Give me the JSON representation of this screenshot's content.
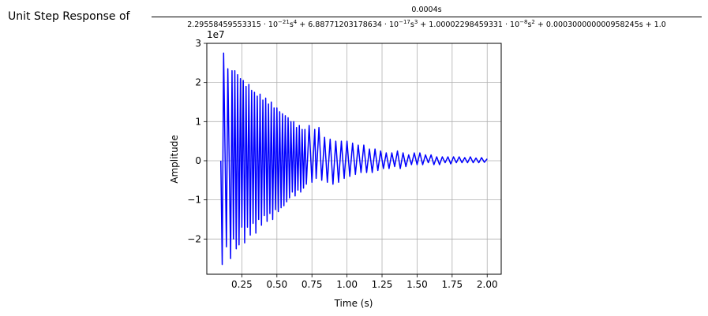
{
  "chart_data": {
    "type": "line",
    "title": {
      "prefix": "Unit Step Response of",
      "numerator": "0.0004s",
      "denominator": {
        "c4": "2.29558459553315 · 10",
        "e4": "−21",
        "s4": "s",
        "p4": "4",
        "c3": " + 6.88771203178634 · 10",
        "e3": "−17",
        "s3": "s",
        "p3": "3",
        "c2": " + 1.00002298459331 · 10",
        "e2": "−8",
        "s2": "s",
        "p2": "2",
        "c1": " + 0.000300000000958245s + 1.0"
      }
    },
    "xlabel": "Time (s)",
    "ylabel": "Amplitude",
    "y_offset_text": "1e7",
    "xlim": [
      0.0,
      2.1
    ],
    "ylim": [
      -2.9,
      3.0
    ],
    "xticks": [
      "0.25",
      "0.50",
      "0.75",
      "1.00",
      "1.25",
      "1.50",
      "1.75",
      "2.00"
    ],
    "xtick_values": [
      0.25,
      0.5,
      0.75,
      1.0,
      1.25,
      1.5,
      1.75,
      2.0
    ],
    "yticks": [
      "−2",
      "−1",
      "0",
      "1",
      "2",
      "3"
    ],
    "ytick_values": [
      -2,
      -1,
      0,
      1,
      2,
      3
    ],
    "grid": true,
    "series": [
      {
        "color": "#0000ff",
        "x": [
          0.1,
          0.11,
          0.12,
          0.14,
          0.15,
          0.17,
          0.18,
          0.19,
          0.2,
          0.21,
          0.22,
          0.23,
          0.24,
          0.25,
          0.26,
          0.27,
          0.28,
          0.29,
          0.3,
          0.31,
          0.32,
          0.33,
          0.34,
          0.35,
          0.36,
          0.37,
          0.38,
          0.39,
          0.4,
          0.41,
          0.42,
          0.43,
          0.44,
          0.45,
          0.46,
          0.47,
          0.48,
          0.49,
          0.5,
          0.51,
          0.52,
          0.53,
          0.54,
          0.55,
          0.56,
          0.57,
          0.58,
          0.59,
          0.6,
          0.61,
          0.62,
          0.63,
          0.64,
          0.65,
          0.66,
          0.67,
          0.68,
          0.69,
          0.7,
          0.71,
          0.73,
          0.75,
          0.77,
          0.78,
          0.8,
          0.82,
          0.84,
          0.86,
          0.88,
          0.9,
          0.92,
          0.94,
          0.96,
          0.98,
          1.0,
          1.02,
          1.04,
          1.06,
          1.08,
          1.1,
          1.12,
          1.14,
          1.16,
          1.18,
          1.2,
          1.22,
          1.24,
          1.26,
          1.28,
          1.3,
          1.32,
          1.34,
          1.36,
          1.38,
          1.4,
          1.42,
          1.44,
          1.46,
          1.48,
          1.5,
          1.52,
          1.54,
          1.56,
          1.58,
          1.6,
          1.62,
          1.64,
          1.66,
          1.68,
          1.7,
          1.72,
          1.74,
          1.76,
          1.78,
          1.8,
          1.82,
          1.84,
          1.86,
          1.88,
          1.9,
          1.92,
          1.94,
          1.96,
          1.98,
          2.0
        ],
        "y": [
          0.0,
          -2.65,
          2.75,
          -2.2,
          2.35,
          -2.5,
          2.3,
          -2.0,
          2.3,
          -2.25,
          2.2,
          -2.15,
          2.1,
          -1.7,
          2.05,
          -2.1,
          1.9,
          -1.7,
          1.95,
          -1.9,
          1.8,
          -1.6,
          1.75,
          -1.85,
          1.65,
          -1.5,
          1.7,
          -1.65,
          1.55,
          -1.4,
          1.6,
          -1.55,
          1.45,
          -1.35,
          1.5,
          -1.5,
          1.35,
          -1.25,
          1.35,
          -1.3,
          1.25,
          -1.2,
          1.2,
          -1.15,
          1.15,
          -1.05,
          1.1,
          -0.95,
          1.0,
          -0.8,
          1.0,
          -0.9,
          0.85,
          -0.75,
          0.9,
          -0.8,
          0.8,
          -0.7,
          0.8,
          -0.6,
          0.9,
          -0.55,
          0.8,
          -0.45,
          0.85,
          -0.5,
          0.6,
          -0.55,
          0.55,
          -0.6,
          0.5,
          -0.55,
          0.5,
          -0.45,
          0.5,
          -0.4,
          0.45,
          -0.35,
          0.4,
          -0.3,
          0.4,
          -0.3,
          0.3,
          -0.3,
          0.3,
          -0.25,
          0.25,
          -0.2,
          0.2,
          -0.2,
          0.2,
          -0.15,
          0.25,
          -0.2,
          0.2,
          -0.15,
          0.15,
          -0.1,
          0.2,
          -0.1,
          0.2,
          -0.1,
          0.15,
          -0.05,
          0.15,
          -0.1,
          0.1,
          -0.1,
          0.1,
          -0.05,
          0.1,
          -0.08,
          0.1,
          -0.05,
          0.1,
          -0.05,
          0.08,
          -0.05,
          0.1,
          -0.05,
          0.07,
          -0.05,
          0.08,
          -0.04,
          0.05
        ]
      }
    ]
  }
}
